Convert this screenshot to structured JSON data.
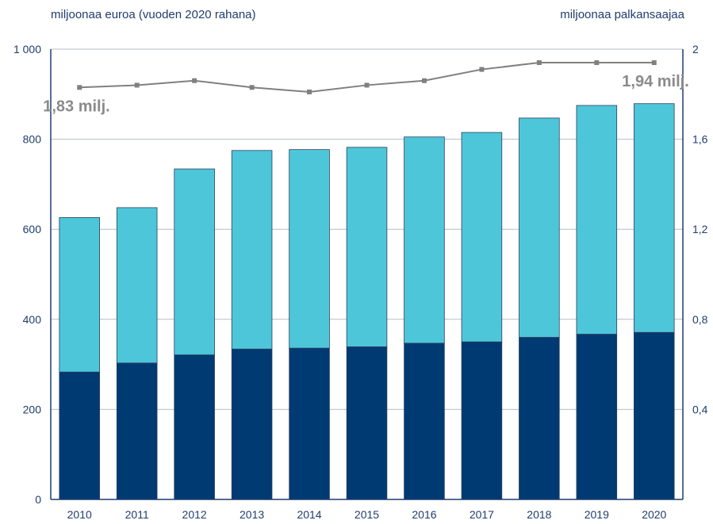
{
  "chart_data": {
    "type": "bar",
    "stacked": true,
    "categories": [
      "2010",
      "2011",
      "2012",
      "2013",
      "2014",
      "2015",
      "2016",
      "2017",
      "2018",
      "2019",
      "2020"
    ],
    "series": [
      {
        "name": "",
        "values": [
          283,
          303,
          321,
          334,
          336,
          339,
          347,
          350,
          360,
          367,
          371
        ],
        "color": "#003a73"
      },
      {
        "name": "",
        "values": [
          343,
          345,
          413,
          441,
          441,
          443,
          458,
          465,
          487,
          508,
          508
        ],
        "color": "#4ec6da"
      }
    ],
    "line_series": {
      "name": "",
      "axis": "right",
      "values": [
        1.83,
        1.84,
        1.86,
        1.83,
        1.81,
        1.84,
        1.86,
        1.91,
        1.94,
        1.94,
        1.94
      ],
      "color": "#808080"
    },
    "ylabel_left": "miljoonaa euroa (vuoden 2020 rahana)",
    "ylabel_right": "miljoonaa palkansaajaa",
    "ylim_left": [
      0,
      1000
    ],
    "ylim_right": [
      0,
      2
    ],
    "yticks_left": [
      "0",
      "200",
      "400",
      "600",
      "800",
      "1 000"
    ],
    "yticks_right": [
      "0,4",
      "0,8",
      "1,2",
      "1,6",
      "2"
    ],
    "grid": true,
    "annotations": [
      {
        "text": "1,83 milj.",
        "x": "2010",
        "y": 1.83
      },
      {
        "text": "1,94 milj.",
        "x": "2020",
        "y": 1.94
      }
    ]
  }
}
